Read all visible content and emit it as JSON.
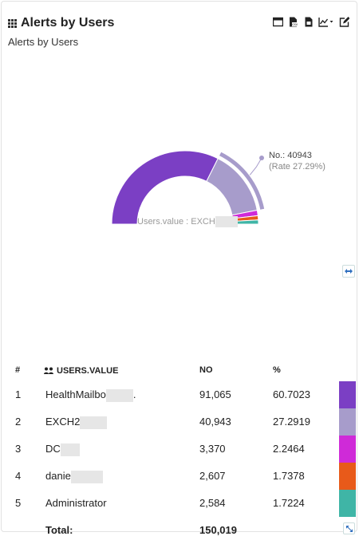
{
  "widget": {
    "title": "Alerts by Users",
    "subtitle": "Alerts by Users",
    "toolbar_icons": [
      "table-view-icon",
      "export-csv-icon",
      "export-pdf-icon",
      "chart-type-icon",
      "edit-icon"
    ]
  },
  "chart_data": {
    "type": "pie",
    "categories": [
      "HealthMailbo…",
      "EXCH2…",
      "DC…",
      "danie…",
      "Administrator"
    ],
    "values": [
      91065,
      40943,
      3370,
      2607,
      2584
    ],
    "colors": [
      "#7b3fc4",
      "#a79ccb",
      "#cf2ad8",
      "#e85a1a",
      "#3fb5a6"
    ]
  },
  "tooltip": {
    "value_label": "No.: 40943",
    "rate_label": "(Rate 27.29%)"
  },
  "center_label": "Users.value : EXCH",
  "table": {
    "headers": {
      "index": "#",
      "users": "USERS.VALUE",
      "no": "NO",
      "pct": "%"
    },
    "rows": [
      {
        "idx": "1",
        "user": "HealthMailbo",
        "suffix": ".",
        "no": "91,065",
        "pct": "60.7023",
        "color": "#7b3fc4"
      },
      {
        "idx": "2",
        "user": "EXCH2",
        "suffix": "",
        "no": "40,943",
        "pct": "27.2919",
        "color": "#a79ccb"
      },
      {
        "idx": "3",
        "user": "DC",
        "suffix": "",
        "no": "3,370",
        "pct": "2.2464",
        "color": "#cf2ad8"
      },
      {
        "idx": "4",
        "user": "danie",
        "suffix": "",
        "no": "2,607",
        "pct": "1.7378",
        "color": "#e85a1a"
      },
      {
        "idx": "5",
        "user": "Administrator",
        "suffix": "",
        "no": "2,584",
        "pct": "1.7224",
        "color": "#3fb5a6"
      }
    ],
    "total_label": "Total:",
    "total_value": "150,019"
  }
}
